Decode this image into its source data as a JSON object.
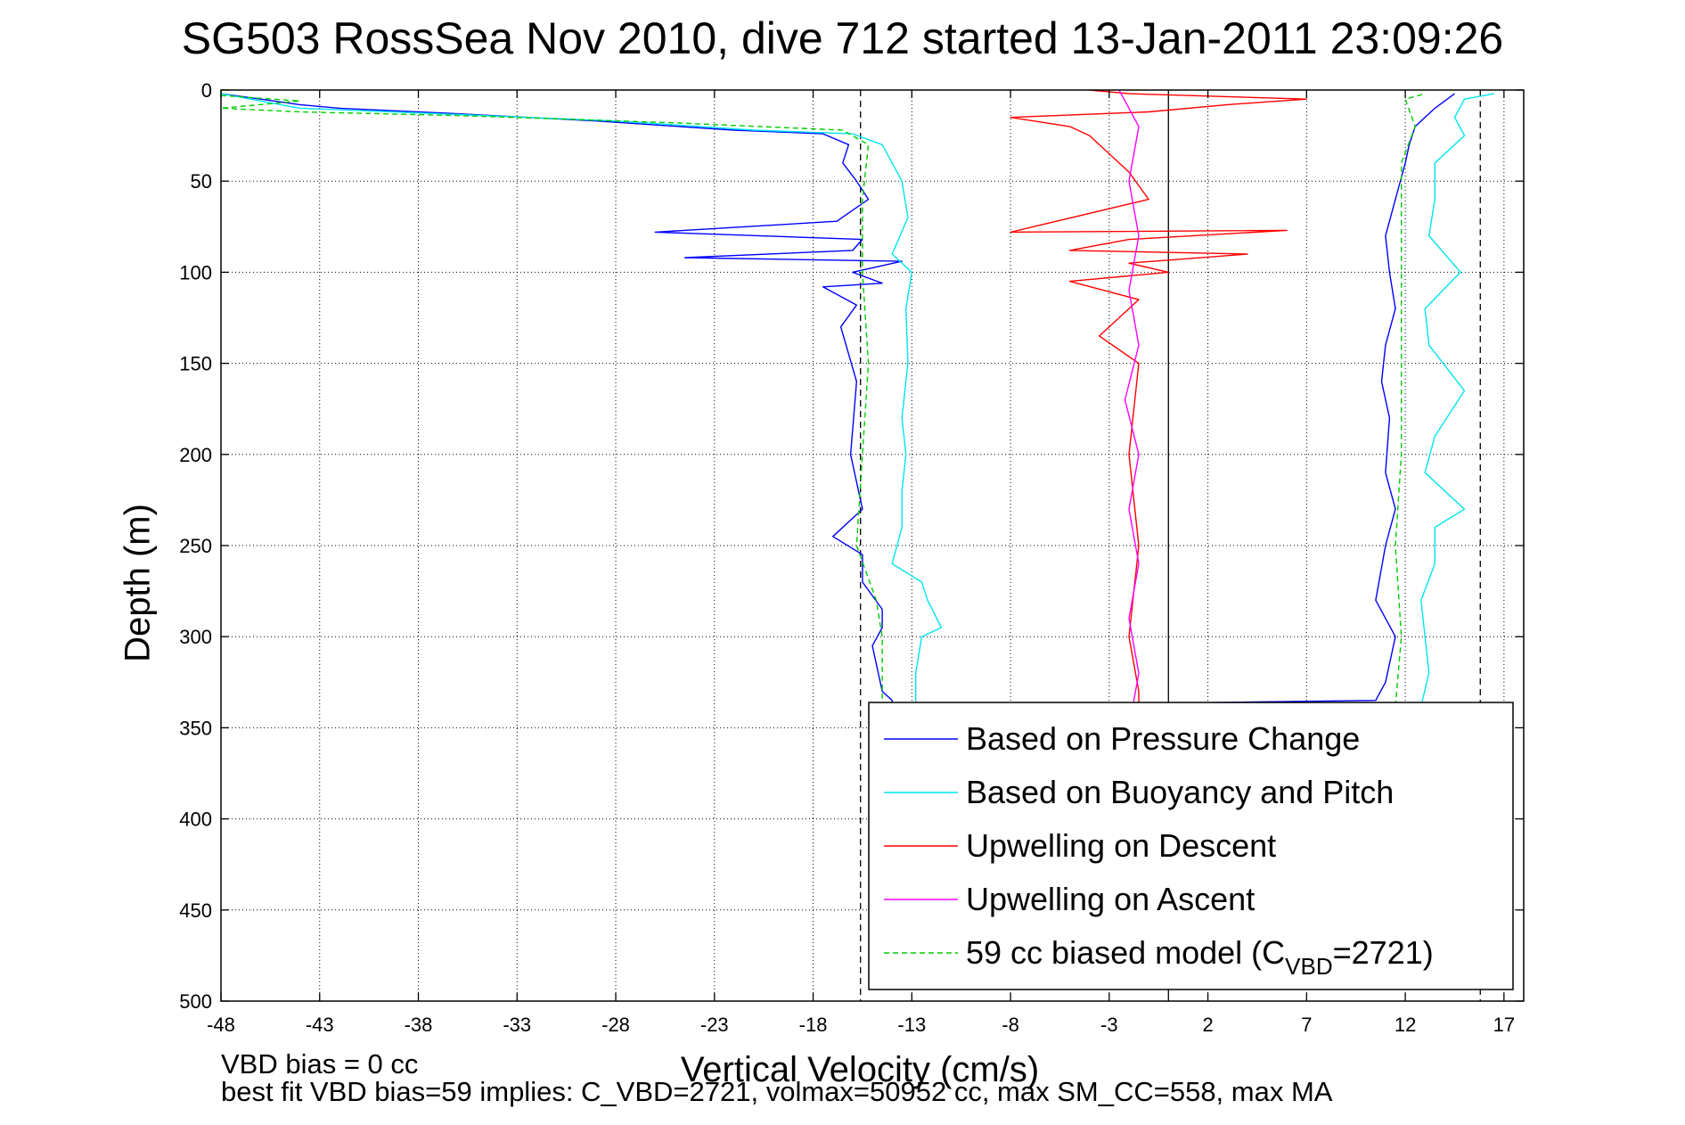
{
  "chart_data": {
    "type": "line",
    "title": "SG503 RossSea Nov 2010, dive 712 started 13-Jan-2011 23:09:26",
    "xlabel": "Vertical Velocity (cm/s)",
    "ylabel": "Depth (m)",
    "xlim": [
      -48,
      18
    ],
    "ylim": [
      500,
      0
    ],
    "y_reversed": true,
    "xticks": [
      -48,
      -43,
      -38,
      -33,
      -28,
      -23,
      -18,
      -13,
      -8,
      -3,
      2,
      7,
      12,
      17
    ],
    "yticks": [
      0,
      50,
      100,
      150,
      200,
      250,
      300,
      350,
      400,
      450,
      500
    ],
    "grid": true,
    "legend_placement": "bottom-right",
    "vertical_lines": [
      {
        "x": -15.6,
        "style": "dashed"
      },
      {
        "x": 0,
        "style": "solid"
      },
      {
        "x": 15.8,
        "style": "dashed"
      }
    ],
    "series": [
      {
        "name": "Based on Pressure Change",
        "color": "#0000ff",
        "style": "solid",
        "points": [
          [
            -48,
            2
          ],
          [
            -46,
            5
          ],
          [
            -44,
            8
          ],
          [
            -42,
            10
          ],
          [
            -36,
            13
          ],
          [
            -29,
            17
          ],
          [
            -22,
            22
          ],
          [
            -17.5,
            24
          ],
          [
            -16.2,
            30
          ],
          [
            -16.5,
            40
          ],
          [
            -15.8,
            50
          ],
          [
            -15.2,
            60
          ],
          [
            -16.8,
            72
          ],
          [
            -26,
            78
          ],
          [
            -15.5,
            82
          ],
          [
            -16,
            88
          ],
          [
            -24.5,
            92
          ],
          [
            -13.5,
            94
          ],
          [
            -16,
            100
          ],
          [
            -14.5,
            106
          ],
          [
            -17.5,
            108
          ],
          [
            -15.8,
            118
          ],
          [
            -16.6,
            130
          ],
          [
            -15.8,
            160
          ],
          [
            -16.1,
            200
          ],
          [
            -15.5,
            230
          ],
          [
            -17,
            245
          ],
          [
            -15.5,
            255
          ],
          [
            -15.5,
            270
          ],
          [
            -14.5,
            285
          ],
          [
            -14.5,
            295
          ],
          [
            -15,
            305
          ],
          [
            -14.5,
            330
          ],
          [
            -14,
            335
          ],
          [
            -14,
            338
          ],
          [
            -13,
            338
          ],
          [
            -12,
            338
          ],
          [
            -11,
            338
          ],
          [
            10.5,
            335
          ],
          [
            11,
            325
          ],
          [
            11.5,
            300
          ],
          [
            10.5,
            280
          ],
          [
            11,
            250
          ],
          [
            11.5,
            230
          ],
          [
            11,
            210
          ],
          [
            11.2,
            180
          ],
          [
            10.8,
            160
          ],
          [
            11,
            140
          ],
          [
            11.5,
            120
          ],
          [
            11.2,
            100
          ],
          [
            11,
            80
          ],
          [
            11.5,
            60
          ],
          [
            12,
            40
          ],
          [
            12.2,
            30
          ],
          [
            12.5,
            20
          ],
          [
            13.5,
            10
          ],
          [
            14.5,
            2
          ]
        ]
      },
      {
        "name": "Based on Buoyancy and Pitch",
        "color": "#00e5ee",
        "style": "solid",
        "points": [
          [
            -48,
            2
          ],
          [
            -46,
            6
          ],
          [
            -44,
            10
          ],
          [
            -37,
            13
          ],
          [
            -28,
            17
          ],
          [
            -21,
            22
          ],
          [
            -16,
            24
          ],
          [
            -14.5,
            30
          ],
          [
            -14,
            40
          ],
          [
            -13.5,
            50
          ],
          [
            -13.2,
            70
          ],
          [
            -14,
            90
          ],
          [
            -13,
            100
          ],
          [
            -13.3,
            120
          ],
          [
            -13.2,
            150
          ],
          [
            -13.5,
            180
          ],
          [
            -13.3,
            200
          ],
          [
            -13.5,
            220
          ],
          [
            -13.5,
            240
          ],
          [
            -14,
            260
          ],
          [
            -12.5,
            270
          ],
          [
            -12.2,
            280
          ],
          [
            -11.5,
            295
          ],
          [
            -12.5,
            300
          ],
          [
            -12.8,
            320
          ],
          [
            -12.8,
            335
          ],
          [
            -12.8,
            338
          ],
          [
            -12,
            338
          ],
          [
            12.8,
            338
          ],
          [
            13.2,
            320
          ],
          [
            13,
            300
          ],
          [
            12.8,
            280
          ],
          [
            13.5,
            260
          ],
          [
            13.5,
            240
          ],
          [
            15,
            230
          ],
          [
            13,
            210
          ],
          [
            13.5,
            190
          ],
          [
            15,
            165
          ],
          [
            13.2,
            140
          ],
          [
            13,
            120
          ],
          [
            14.8,
            100
          ],
          [
            13.2,
            80
          ],
          [
            13.5,
            60
          ],
          [
            13.5,
            40
          ],
          [
            15,
            25
          ],
          [
            14.5,
            15
          ],
          [
            15,
            5
          ],
          [
            16.5,
            2
          ]
        ]
      },
      {
        "name": "Upwelling on Descent",
        "color": "#ff0000",
        "style": "solid",
        "points": [
          [
            -4,
            0
          ],
          [
            -2,
            2
          ],
          [
            7,
            5
          ],
          [
            3,
            8
          ],
          [
            -1,
            12
          ],
          [
            -8,
            15
          ],
          [
            -5,
            20
          ],
          [
            -4,
            25
          ],
          [
            -3,
            35
          ],
          [
            -2,
            45
          ],
          [
            -1,
            60
          ],
          [
            -8,
            78
          ],
          [
            6,
            77
          ],
          [
            -2,
            82
          ],
          [
            -5,
            88
          ],
          [
            4,
            90
          ],
          [
            -2,
            95
          ],
          [
            0,
            100
          ],
          [
            -5,
            105
          ],
          [
            -1.5,
            115
          ],
          [
            -2.5,
            125
          ],
          [
            -3.5,
            135
          ],
          [
            -1.5,
            150
          ],
          [
            -2,
            200
          ],
          [
            -1.5,
            250
          ],
          [
            -2,
            300
          ],
          [
            -1.5,
            330
          ],
          [
            -1.5,
            338
          ]
        ]
      },
      {
        "name": "Upwelling on Ascent",
        "color": "#ff00ff",
        "style": "solid",
        "points": [
          [
            -2.5,
            0
          ],
          [
            -1.5,
            20
          ],
          [
            -2,
            50
          ],
          [
            -1.5,
            80
          ],
          [
            -2,
            110
          ],
          [
            -1.5,
            140
          ],
          [
            -2.2,
            170
          ],
          [
            -1.5,
            200
          ],
          [
            -2,
            230
          ],
          [
            -1.5,
            260
          ],
          [
            -2,
            290
          ],
          [
            -1.5,
            320
          ],
          [
            -1.8,
            338
          ]
        ]
      },
      {
        "name": "59 cc biased model (C_VBD=2721)",
        "label_main": "59 cc biased model (C",
        "label_sub": "VBD",
        "label_end": "=2721)",
        "color": "#00cc00",
        "style": "dashed",
        "points": [
          [
            -48,
            3
          ],
          [
            -44,
            6
          ],
          [
            -48,
            10
          ],
          [
            -44,
            12
          ],
          [
            -36,
            14
          ],
          [
            -25,
            18
          ],
          [
            -16.5,
            22
          ],
          [
            -15.2,
            30
          ],
          [
            -15.5,
            60
          ],
          [
            -15.5,
            100
          ],
          [
            -15.2,
            150
          ],
          [
            -15.5,
            200
          ],
          [
            -15.8,
            250
          ],
          [
            -14.8,
            280
          ],
          [
            -14.5,
            300
          ],
          [
            -14.5,
            338
          ],
          [
            11.5,
            338
          ],
          [
            11.8,
            300
          ],
          [
            11.5,
            250
          ],
          [
            11.8,
            200
          ],
          [
            11.8,
            150
          ],
          [
            11.8,
            100
          ],
          [
            11.8,
            40
          ],
          [
            12.5,
            20
          ],
          [
            12,
            5
          ],
          [
            13,
            2
          ]
        ]
      }
    ]
  },
  "footer": {
    "line1": "VBD bias = 0 cc",
    "line2": "best fit VBD bias=59 implies: C_VBD=2721, volmax=50952 cc, max SM_CC=558, max MA"
  }
}
